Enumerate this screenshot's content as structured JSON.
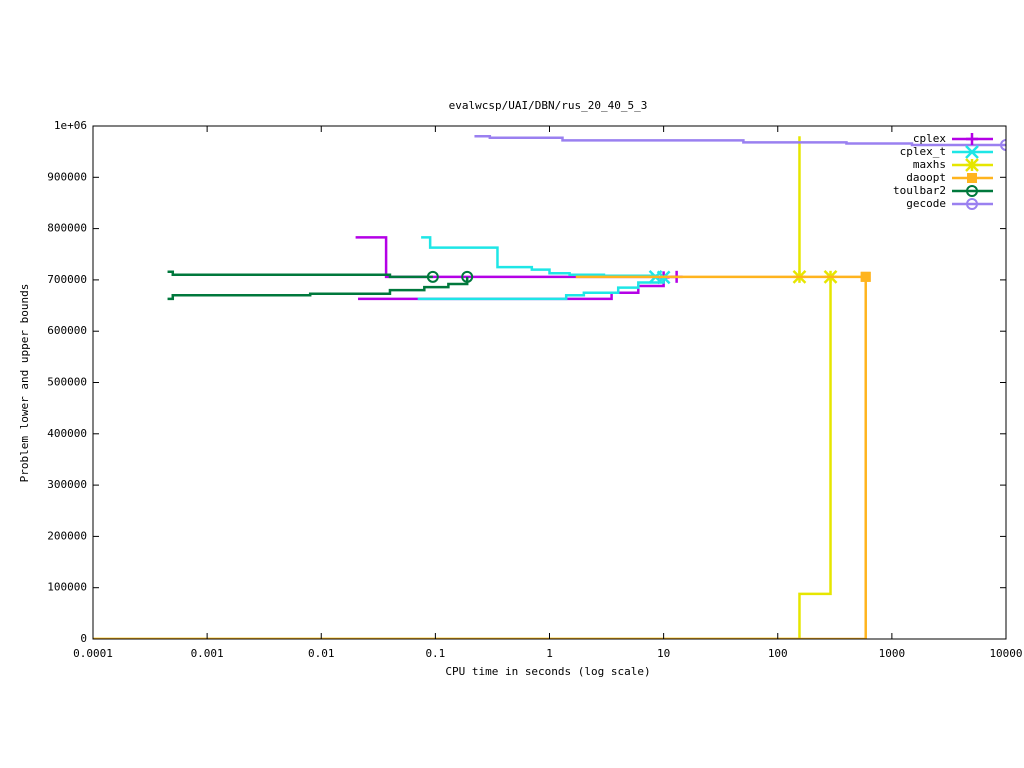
{
  "chart_data": {
    "type": "line",
    "title": "evalwcsp/UAI/DBN/rus_20_40_5_3",
    "xlabel": "CPU time in seconds (log scale)",
    "ylabel": "Problem lower and upper bounds",
    "xscale": "log",
    "step": true,
    "legend": "upper right",
    "xlim": [
      0.0001,
      10000
    ],
    "xticks": [
      0.0001,
      0.001,
      0.01,
      0.1,
      1,
      10,
      100,
      1000,
      10000
    ],
    "ylim": [
      0,
      1000000
    ],
    "yticks": [
      0,
      100000,
      200000,
      300000,
      400000,
      500000,
      600000,
      700000,
      800000,
      900000,
      {
        "value": 1000000,
        "label": "1e+06"
      }
    ],
    "series": [
      {
        "name": "cplex",
        "color": "#b400e6",
        "point": "plus",
        "x": [
          0.02,
          0.037,
          13,
          null,
          0.021,
          2.6,
          3.5,
          6,
          10
        ],
        "values": [
          783000,
          706000,
          706000,
          null,
          663000,
          663000,
          675000,
          688000,
          705000
        ]
      },
      {
        "name": "cplex_t",
        "color": "#1ee6e6",
        "point": "cross",
        "x": [
          0.075,
          0.09,
          0.35,
          0.7,
          1,
          1.5,
          3,
          8.5,
          null,
          0.07,
          1.4,
          2,
          4,
          6,
          10
        ],
        "values": [
          783000,
          763000,
          725000,
          720000,
          713000,
          710000,
          708000,
          706000,
          null,
          663000,
          670000,
          675000,
          685000,
          695000,
          705000
        ]
      },
      {
        "name": "maxhs",
        "color": "#e6e600",
        "point": "star",
        "x": [
          155,
          155,
          null,
          0.0001,
          155,
          290
        ],
        "values": [
          980000,
          706000,
          null,
          0,
          88000,
          706000
        ]
      },
      {
        "name": "daoopt",
        "color": "#ffb41e",
        "point": "square",
        "x": [
          1.7,
          590,
          null,
          0.0001,
          590
        ],
        "values": [
          706000,
          706000,
          null,
          0,
          706000
        ]
      },
      {
        "name": "toulbar2",
        "color": "#00783c",
        "point": "circle",
        "x": [
          0.00045,
          0.0005,
          0.04,
          0.095,
          null,
          0.00045,
          0.0005,
          0.008,
          0.04,
          0.08,
          0.13,
          0.19
        ],
        "values": [
          716000,
          710000,
          706000,
          706000,
          null,
          663000,
          670000,
          673000,
          680000,
          686000,
          692000,
          706000
        ]
      },
      {
        "name": "gecode",
        "color": "#9a80f0",
        "point": "circle",
        "x": [
          0.22,
          0.3,
          1.3,
          50,
          400,
          1500,
          10000
        ],
        "values": [
          980000,
          977000,
          972000,
          968000,
          966000,
          963000,
          963000
        ]
      }
    ]
  }
}
